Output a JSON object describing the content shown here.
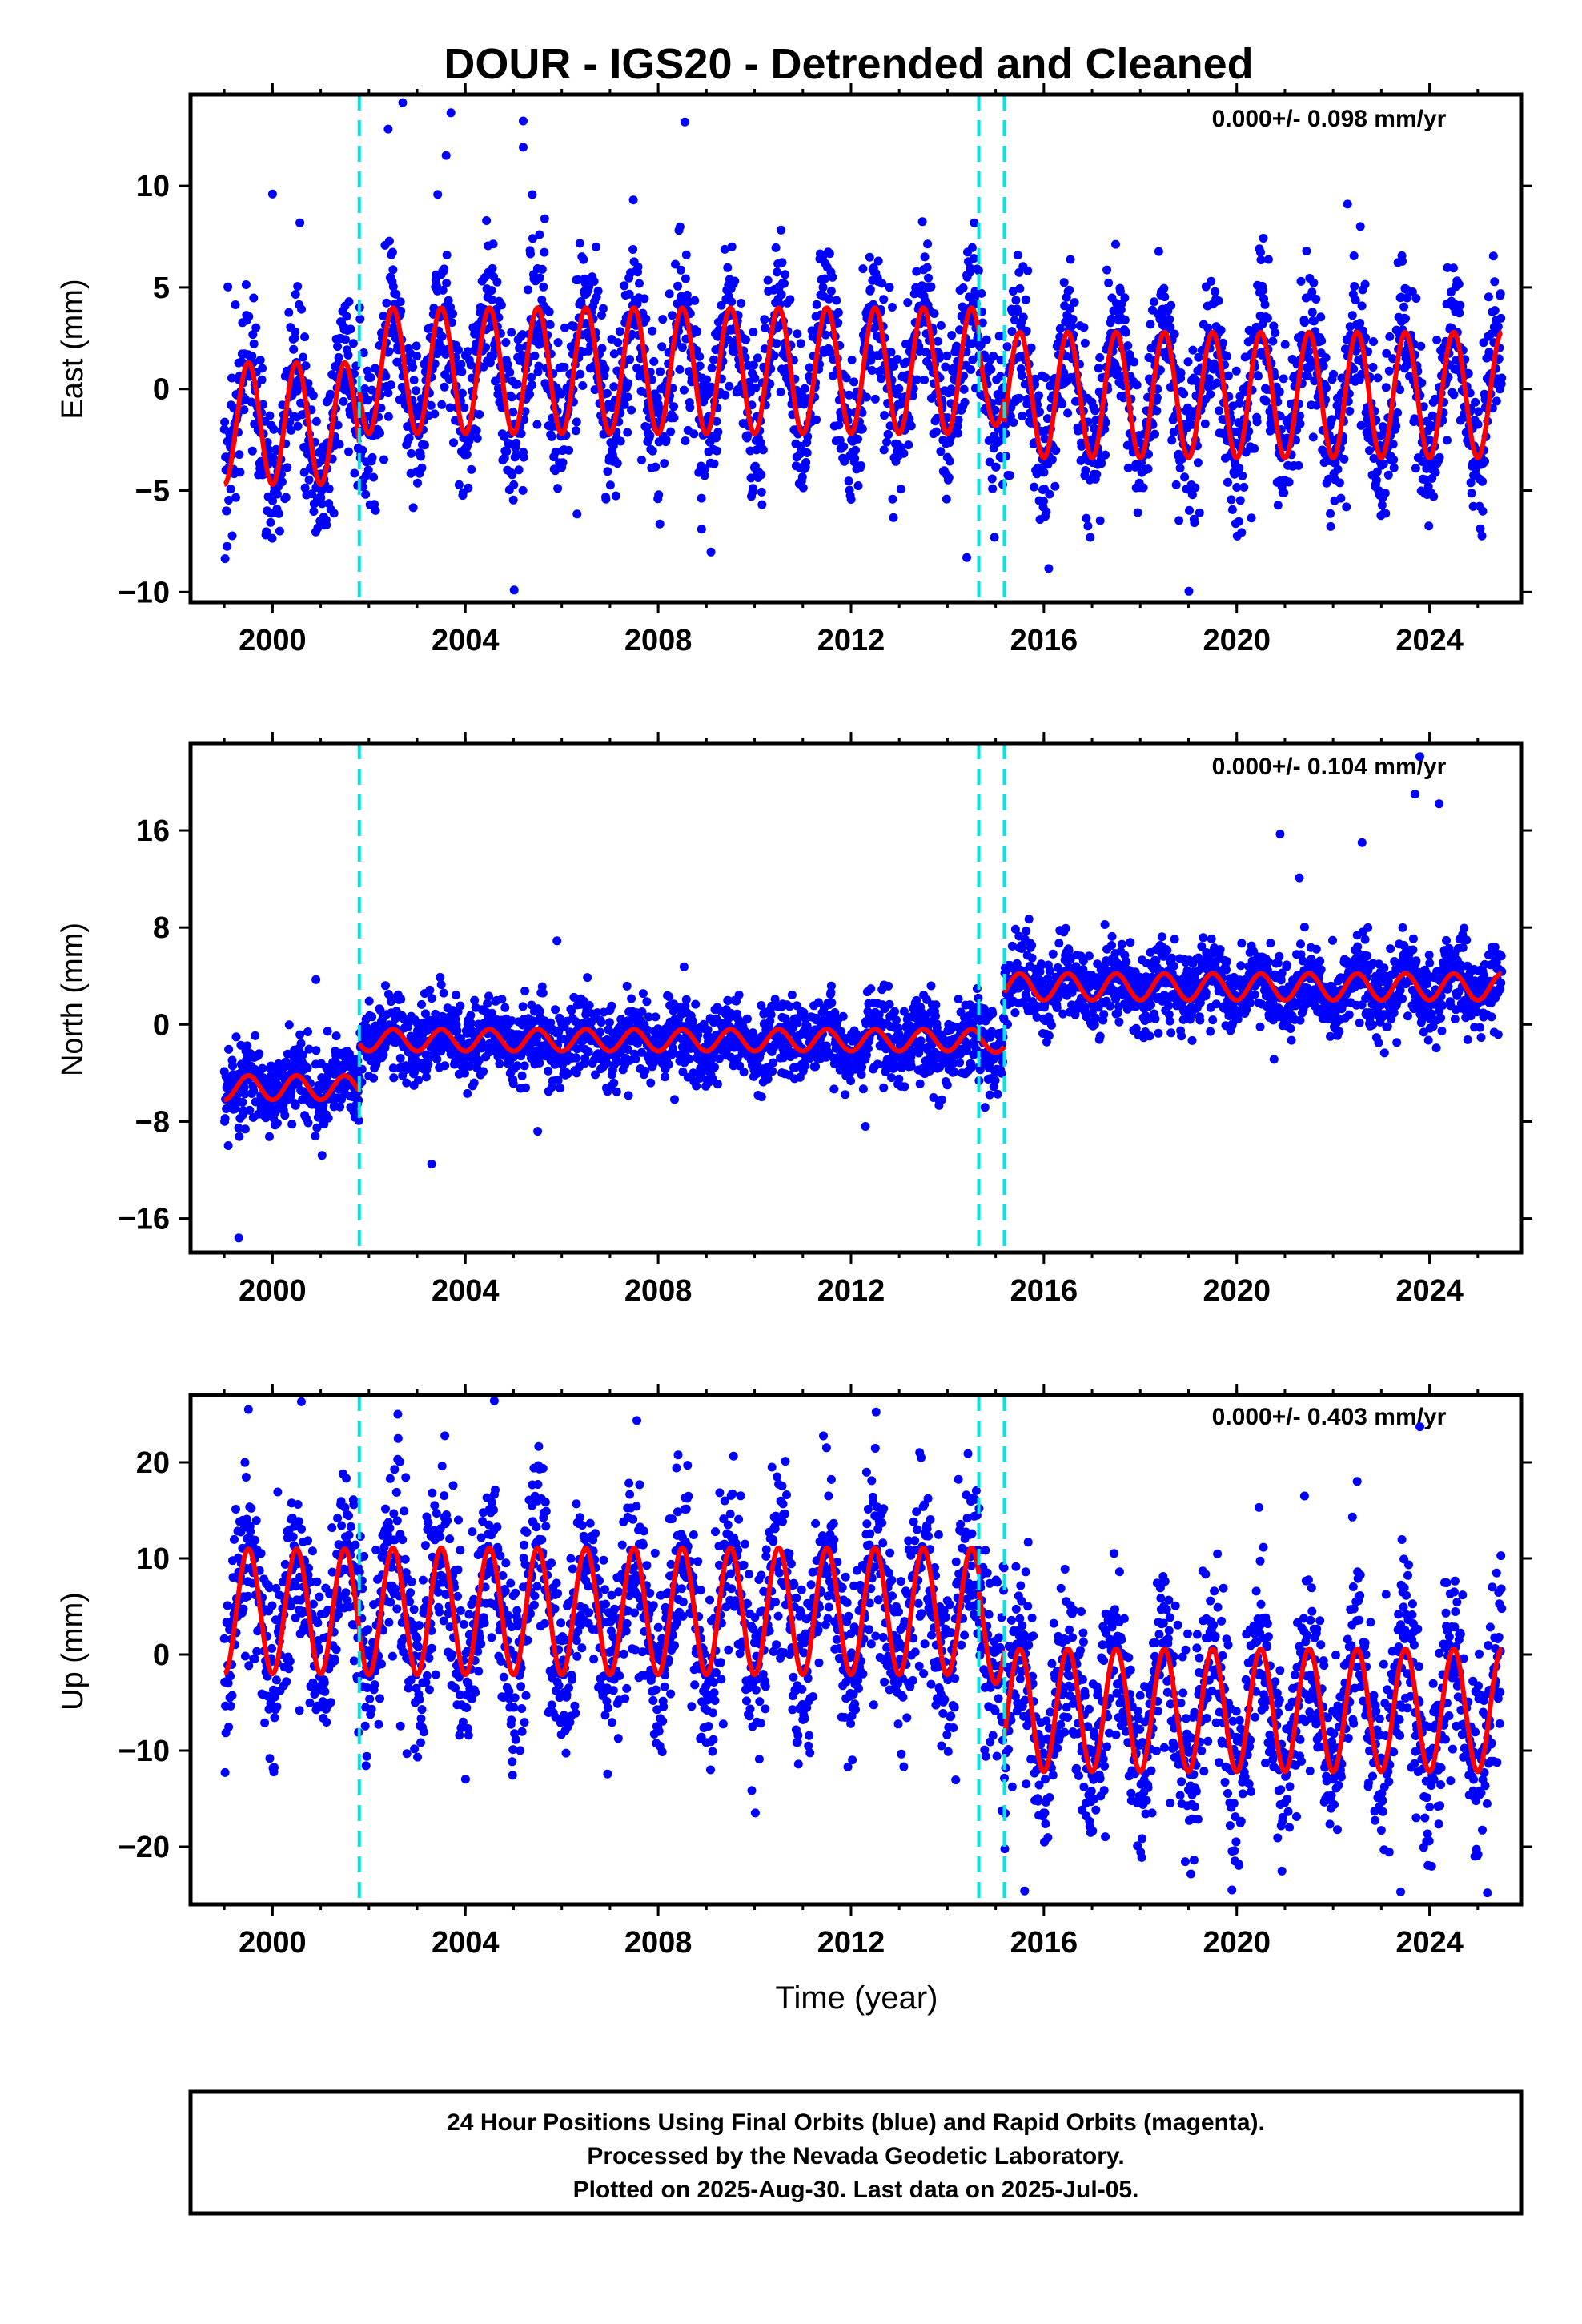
{
  "title": "DOUR - IGS20 - Detrended and Cleaned",
  "colors": {
    "final_orbit_points": "#0000ff",
    "model_fit": "#ff0000",
    "step_markers": "#00e5e5",
    "frame": "#000000"
  },
  "footer": {
    "line1": "24 Hour Positions Using Final Orbits (blue) and Rapid Orbits (magenta).",
    "line2": "Processed by the Nevada Geodetic Laboratory.",
    "line3": "Plotted on 2025-Aug-30. Last data on 2025-Jul-05."
  },
  "chart_data": [
    {
      "type": "scatter",
      "component": "East",
      "ylabel": "East (mm)",
      "xlabel": "",
      "rate_label": "0.000+/- 0.098 mm/yr",
      "xlim": [
        1998.3,
        2025.9
      ],
      "ylim": [
        -10.5,
        14.5
      ],
      "xticks": [
        2000,
        2004,
        2008,
        2012,
        2016,
        2020,
        2024
      ],
      "yticks": [
        -10,
        -5,
        0,
        5,
        10
      ],
      "data_range": [
        1999.0,
        2025.5
      ],
      "step_epochs": [
        2001.8,
        2014.65,
        2015.18
      ],
      "series": [
        {
          "label": "Final orbits",
          "scatter_mm": 1.9,
          "segments": [
            {
              "from": 1999.0,
              "to": 2001.8,
              "offset": -1.7,
              "amplitude": 3.0
            },
            {
              "from": 2001.8,
              "to": 2014.65,
              "offset": 0.9,
              "amplitude": 3.1
            },
            {
              "from": 2014.65,
              "to": 2015.18,
              "offset": 0.5,
              "amplitude": 2.3
            },
            {
              "from": 2015.18,
              "to": 2025.5,
              "offset": -0.3,
              "amplitude": 3.1
            }
          ],
          "outliers": [
            {
              "x": 2000.0,
              "y": 9.6
            },
            {
              "x": 2002.4,
              "y": 12.8
            },
            {
              "x": 2002.7,
              "y": 14.1
            },
            {
              "x": 2003.7,
              "y": 13.6
            },
            {
              "x": 2003.6,
              "y": 11.5
            },
            {
              "x": 2005.2,
              "y": 13.2
            },
            {
              "x": 2005.2,
              "y": 11.9
            },
            {
              "x": 2014.4,
              "y": -8.3
            },
            {
              "x": 2022.3,
              "y": 9.1
            },
            {
              "x": 2008.9,
              "y": -6.9
            }
          ]
        },
        {
          "label": "Model fit",
          "segments": [
            {
              "from": 1999.0,
              "to": 2001.8,
              "offset": -1.7,
              "amplitude": 3.0
            },
            {
              "from": 2001.8,
              "to": 2014.65,
              "offset": 0.9,
              "amplitude": 3.1
            },
            {
              "from": 2014.65,
              "to": 2015.18,
              "offset": 0.5,
              "amplitude": 2.3
            },
            {
              "from": 2015.18,
              "to": 2025.5,
              "offset": -0.3,
              "amplitude": 3.1
            }
          ]
        }
      ]
    },
    {
      "type": "scatter",
      "component": "North",
      "ylabel": "North (mm)",
      "xlabel": "",
      "rate_label": "0.000+/- 0.104 mm/yr",
      "xlim": [
        1998.3,
        2025.9
      ],
      "ylim": [
        -18.8,
        23.2
      ],
      "xticks": [
        2000,
        2004,
        2008,
        2012,
        2016,
        2020,
        2024
      ],
      "yticks": [
        -16,
        -8,
        0,
        8,
        16
      ],
      "data_range": [
        1999.0,
        2025.5
      ],
      "step_epochs": [
        2001.8,
        2014.65,
        2015.18
      ],
      "series": [
        {
          "label": "Final orbits",
          "scatter_mm": 1.6,
          "segments": [
            {
              "from": 1999.0,
              "to": 2001.8,
              "offset": -5.2,
              "amplitude": 1.0
            },
            {
              "from": 2001.8,
              "to": 2014.65,
              "offset": -1.3,
              "amplitude": 0.9
            },
            {
              "from": 2014.65,
              "to": 2015.18,
              "offset": -1.5,
              "amplitude": 0.8
            },
            {
              "from": 2015.18,
              "to": 2025.5,
              "offset": 3.1,
              "amplitude": 1.1
            }
          ],
          "outliers": [
            {
              "x": 1999.3,
              "y": -17.6
            },
            {
              "x": 2000.9,
              "y": 3.7
            },
            {
              "x": 2005.9,
              "y": 6.9
            },
            {
              "x": 2003.3,
              "y": -11.5
            },
            {
              "x": 2005.5,
              "y": -8.8
            },
            {
              "x": 2012.3,
              "y": -8.4
            },
            {
              "x": 2020.9,
              "y": 15.7
            },
            {
              "x": 2022.6,
              "y": 15.0
            },
            {
              "x": 2023.8,
              "y": 22.1
            },
            {
              "x": 2023.7,
              "y": 19.0
            },
            {
              "x": 2024.2,
              "y": 18.2
            },
            {
              "x": 2021.3,
              "y": 12.1
            }
          ]
        },
        {
          "label": "Model fit",
          "segments": [
            {
              "from": 1999.0,
              "to": 2001.8,
              "offset": -5.2,
              "amplitude": 1.0
            },
            {
              "from": 2001.8,
              "to": 2014.65,
              "offset": -1.3,
              "amplitude": 0.9
            },
            {
              "from": 2014.65,
              "to": 2015.18,
              "offset": -1.5,
              "amplitude": 0.8
            },
            {
              "from": 2015.18,
              "to": 2025.5,
              "offset": 3.1,
              "amplitude": 1.1
            }
          ]
        }
      ]
    },
    {
      "type": "scatter",
      "component": "Up",
      "ylabel": "Up (mm)",
      "xlabel": "Time (year)",
      "rate_label": "0.000+/- 0.403 mm/yr",
      "xlim": [
        1998.3,
        2025.9
      ],
      "ylim": [
        -26.0,
        27.0
      ],
      "xticks": [
        2000,
        2004,
        2008,
        2012,
        2016,
        2020,
        2024
      ],
      "yticks": [
        -20,
        -10,
        0,
        10,
        20
      ],
      "data_range": [
        1999.0,
        2025.5
      ],
      "step_epochs": [
        2001.8,
        2014.65,
        2015.18
      ],
      "series": [
        {
          "label": "Final orbits",
          "scatter_mm": 4.8,
          "segments": [
            {
              "from": 1999.0,
              "to": 2001.8,
              "offset": 4.5,
              "amplitude": 6.5
            },
            {
              "from": 2001.8,
              "to": 2014.65,
              "offset": 4.5,
              "amplitude": 6.6
            },
            {
              "from": 2014.65,
              "to": 2015.18,
              "offset": 3.0,
              "amplitude": 6.0
            },
            {
              "from": 2015.18,
              "to": 2025.5,
              "offset": -5.8,
              "amplitude": 6.4
            }
          ],
          "outliers": [
            {
              "x": 2000.6,
              "y": 26.3
            },
            {
              "x": 2004.6,
              "y": 26.4
            },
            {
              "x": 1999.5,
              "y": 25.5
            },
            {
              "x": 2002.6,
              "y": 25.0
            },
            {
              "x": 2023.8,
              "y": 23.7
            },
            {
              "x": 2015.6,
              "y": -24.6
            },
            {
              "x": 2019.9,
              "y": -24.5
            },
            {
              "x": 2023.4,
              "y": -24.7
            },
            {
              "x": 2025.2,
              "y": -24.8
            }
          ]
        },
        {
          "label": "Model fit",
          "segments": [
            {
              "from": 1999.0,
              "to": 2001.8,
              "offset": 4.5,
              "amplitude": 6.5
            },
            {
              "from": 2001.8,
              "to": 2014.65,
              "offset": 4.5,
              "amplitude": 6.6
            },
            {
              "from": 2014.65,
              "to": 2015.18,
              "offset": 3.0,
              "amplitude": 6.0
            },
            {
              "from": 2015.18,
              "to": 2025.5,
              "offset": -5.8,
              "amplitude": 6.4
            }
          ]
        }
      ]
    }
  ]
}
